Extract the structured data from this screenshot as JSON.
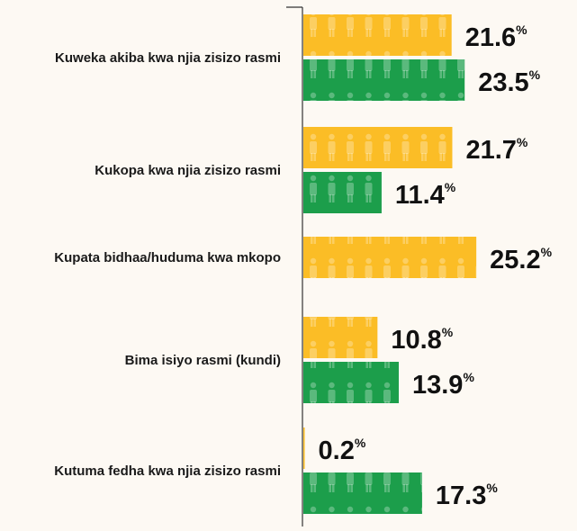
{
  "chart_data": {
    "type": "bar",
    "orientation": "horizontal",
    "categories": [
      "Kuweka akiba kwa njia zisizo rasmi",
      "Kukopa kwa njia zisizo rasmi",
      "Kupata bidhaa/huduma kwa mkopo",
      "Bima isiyo rasmi (kundi)",
      "Kutuma fedha kwa njia zisizo rasmi"
    ],
    "series": [
      {
        "color": "#fbbd26",
        "values": [
          21.6,
          21.7,
          25.2,
          10.8,
          0.2
        ],
        "value_labels": [
          "21.6%",
          "21.7%",
          "25.2%",
          "10.8%",
          "0.2%"
        ]
      },
      {
        "color": "#1c9e4b",
        "values": [
          23.5,
          11.4,
          null,
          13.9,
          17.3
        ],
        "value_labels": [
          "23.5%",
          "11.4%",
          null,
          "13.9%",
          "17.3%"
        ]
      }
    ],
    "xlim": [
      0,
      40
    ]
  }
}
